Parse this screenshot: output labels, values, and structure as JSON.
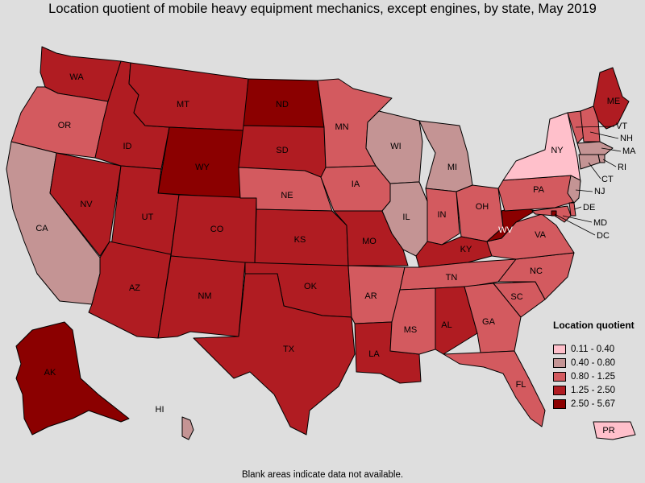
{
  "title": "Location quotient of mobile heavy equipment mechanics, except engines, by state, May 2019",
  "legend": {
    "title": "Location quotient",
    "bins": [
      {
        "label": "0.11 - 0.40",
        "color": "#ffc0cb"
      },
      {
        "label": "0.40 - 0.80",
        "color": "#c49494"
      },
      {
        "label": "0.80 - 1.25",
        "color": "#d35a5f"
      },
      {
        "label": "1.25 - 2.50",
        "color": "#b01c22"
      },
      {
        "label": "2.50 - 5.67",
        "color": "#8b0000"
      }
    ]
  },
  "states": {
    "WA": 3,
    "OR": 2,
    "CA": 1,
    "NV": 3,
    "ID": 3,
    "MT": 3,
    "WY": 4,
    "UT": 3,
    "CO": 3,
    "AZ": 3,
    "NM": 3,
    "ND": 4,
    "SD": 3,
    "NE": 2,
    "KS": 3,
    "OK": 3,
    "TX": 3,
    "MN": 2,
    "IA": 2,
    "MO": 3,
    "AR": 2,
    "LA": 3,
    "WI": 1,
    "IL": 1,
    "MI": 1,
    "IN": 2,
    "OH": 2,
    "KY": 3,
    "TN": 2,
    "MS": 2,
    "AL": 3,
    "GA": 2,
    "FL": 2,
    "SC": 2,
    "NC": 2,
    "VA": 2,
    "WV": 4,
    "PA": 2,
    "NY": 0,
    "ME": 3,
    "VT": 2,
    "NH": 2,
    "MA": 1,
    "RI": 1,
    "CT": 1,
    "NJ": 1,
    "DE": 2,
    "MD": 2,
    "DC": 4,
    "AK": 4,
    "HI": 1,
    "PR": 0
  },
  "footnote": "Blank areas indicate data not available."
}
